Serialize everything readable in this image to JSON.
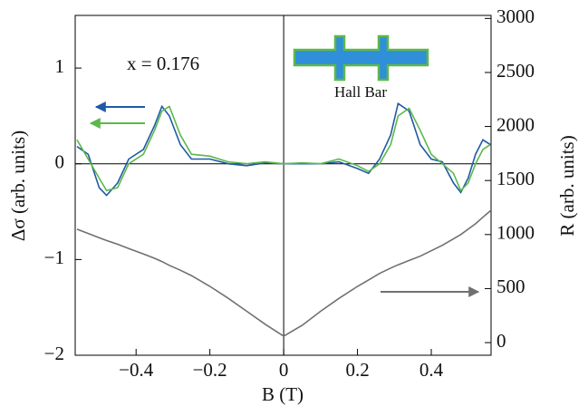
{
  "chart_data": {
    "type": "line",
    "annotations": [
      "x = 0.176",
      "Hall Bar"
    ],
    "xlabel": "B (T)",
    "ylabel": "Δσ (arb. units)",
    "y2label": "R (arb. units)",
    "x": [
      -0.56,
      -0.53,
      -0.5,
      -0.48,
      -0.45,
      -0.42,
      -0.38,
      -0.35,
      -0.33,
      -0.31,
      -0.28,
      -0.25,
      -0.2,
      -0.15,
      -0.1,
      -0.05,
      0,
      0.05,
      0.1,
      0.15,
      0.2,
      0.23,
      0.26,
      0.29,
      0.31,
      0.34,
      0.37,
      0.4,
      0.43,
      0.46,
      0.48,
      0.5,
      0.52,
      0.54,
      0.56
    ],
    "series": [
      {
        "color": "#1f5aa6",
        "values": [
          0.18,
          0.1,
          -0.25,
          -0.33,
          -0.2,
          0.05,
          0.15,
          0.4,
          0.6,
          0.5,
          0.2,
          0.05,
          0.05,
          0.0,
          -0.02,
          0.01,
          0.0,
          0.0,
          0.0,
          0.02,
          -0.05,
          -0.1,
          0.05,
          0.3,
          0.63,
          0.55,
          0.2,
          0.05,
          0.02,
          -0.2,
          -0.3,
          -0.15,
          0.1,
          0.25,
          0.2
        ]
      },
      {
        "color": "#5cb84a",
        "values": [
          0.25,
          0.05,
          -0.15,
          -0.28,
          -0.25,
          0.0,
          0.1,
          0.35,
          0.55,
          0.6,
          0.3,
          0.1,
          0.08,
          0.02,
          0.0,
          0.02,
          0.0,
          0.01,
          0.0,
          0.05,
          -0.02,
          -0.08,
          0.0,
          0.2,
          0.5,
          0.58,
          0.35,
          0.1,
          0.0,
          -0.1,
          -0.28,
          -0.2,
          0.0,
          0.15,
          0.2
        ]
      },
      {
        "color": "#707070",
        "axis": "y2",
        "values": [
          1050,
          1010,
          970,
          945,
          910,
          870,
          820,
          780,
          750,
          715,
          670,
          620,
          520,
          410,
          290,
          170,
          60,
          160,
          290,
          410,
          520,
          580,
          640,
          690,
          720,
          760,
          800,
          850,
          900,
          960,
          1000,
          1050,
          1100,
          1160,
          1220
        ]
      }
    ],
    "xlim": [
      -0.565,
      0.562
    ],
    "xticks": [
      {
        "value": -0.4,
        "label": "−0.4"
      },
      {
        "value": -0.2,
        "label": "−0.2"
      },
      0,
      0.2,
      0.4
    ],
    "ylim": [
      -2,
      1.55
    ],
    "yticks": [
      {
        "value": -2,
        "label": "−2"
      },
      {
        "value": -1,
        "label": "−1"
      },
      0,
      1
    ],
    "y2lim": [
      -117,
      3028
    ],
    "y2ticks": [
      0,
      500,
      1000,
      1500,
      2000,
      2500,
      3000
    ]
  }
}
